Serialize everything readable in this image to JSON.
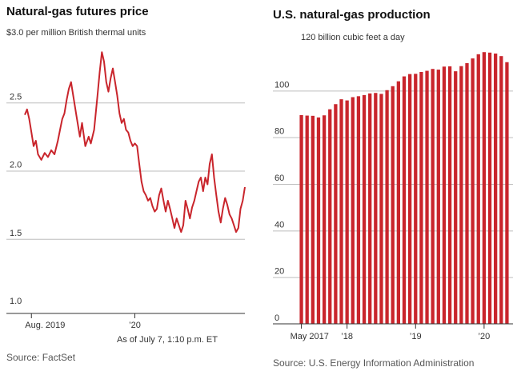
{
  "left": {
    "title": "Natural-gas futures price",
    "subtitle": "$3.0 per million British thermal units",
    "note": "As of July 7, 1:10 p.m. ET",
    "source": "Source: FactSet"
  },
  "right": {
    "title": "U.S. natural-gas production",
    "subtitle": "120 billion cubic feet a day",
    "source": "Source: U.S. Energy Information Administration"
  },
  "colors": {
    "accent": "#c9252c",
    "grid": "#bdbdbd"
  },
  "chart_data": [
    {
      "type": "line",
      "title": "Natural-gas futures price",
      "ylabel": "$ per million British thermal units",
      "ylim": [
        1.0,
        3.0
      ],
      "yticks": [
        "1.0",
        "1.5",
        "2.0",
        "2.5"
      ],
      "xticks": [
        {
          "label": "Aug. 2019",
          "t": 0.03
        },
        {
          "label": "’20",
          "t": 0.5
        }
      ],
      "series": [
        {
          "name": "Natural-gas futures price",
          "points": [
            [
              0.0,
              2.41
            ],
            [
              0.01,
              2.45
            ],
            [
              0.02,
              2.38
            ],
            [
              0.03,
              2.28
            ],
            [
              0.04,
              2.18
            ],
            [
              0.05,
              2.22
            ],
            [
              0.06,
              2.12
            ],
            [
              0.075,
              2.08
            ],
            [
              0.09,
              2.13
            ],
            [
              0.105,
              2.1
            ],
            [
              0.12,
              2.15
            ],
            [
              0.135,
              2.12
            ],
            [
              0.15,
              2.22
            ],
            [
              0.16,
              2.3
            ],
            [
              0.17,
              2.38
            ],
            [
              0.18,
              2.42
            ],
            [
              0.19,
              2.52
            ],
            [
              0.2,
              2.6
            ],
            [
              0.21,
              2.65
            ],
            [
              0.22,
              2.55
            ],
            [
              0.235,
              2.4
            ],
            [
              0.25,
              2.25
            ],
            [
              0.26,
              2.35
            ],
            [
              0.275,
              2.18
            ],
            [
              0.29,
              2.25
            ],
            [
              0.3,
              2.2
            ],
            [
              0.315,
              2.3
            ],
            [
              0.33,
              2.55
            ],
            [
              0.34,
              2.72
            ],
            [
              0.35,
              2.87
            ],
            [
              0.36,
              2.8
            ],
            [
              0.37,
              2.65
            ],
            [
              0.38,
              2.58
            ],
            [
              0.39,
              2.68
            ],
            [
              0.4,
              2.75
            ],
            [
              0.41,
              2.65
            ],
            [
              0.42,
              2.55
            ],
            [
              0.43,
              2.42
            ],
            [
              0.44,
              2.35
            ],
            [
              0.45,
              2.38
            ],
            [
              0.46,
              2.3
            ],
            [
              0.47,
              2.28
            ],
            [
              0.48,
              2.22
            ],
            [
              0.49,
              2.18
            ],
            [
              0.5,
              2.2
            ],
            [
              0.51,
              2.18
            ],
            [
              0.52,
              2.05
            ],
            [
              0.53,
              1.92
            ],
            [
              0.54,
              1.85
            ],
            [
              0.55,
              1.82
            ],
            [
              0.56,
              1.78
            ],
            [
              0.57,
              1.8
            ],
            [
              0.58,
              1.74
            ],
            [
              0.59,
              1.7
            ],
            [
              0.6,
              1.72
            ],
            [
              0.61,
              1.82
            ],
            [
              0.62,
              1.87
            ],
            [
              0.63,
              1.78
            ],
            [
              0.64,
              1.7
            ],
            [
              0.65,
              1.78
            ],
            [
              0.66,
              1.72
            ],
            [
              0.67,
              1.65
            ],
            [
              0.68,
              1.58
            ],
            [
              0.69,
              1.65
            ],
            [
              0.7,
              1.6
            ],
            [
              0.71,
              1.55
            ],
            [
              0.72,
              1.6
            ],
            [
              0.73,
              1.78
            ],
            [
              0.74,
              1.72
            ],
            [
              0.75,
              1.65
            ],
            [
              0.76,
              1.73
            ],
            [
              0.77,
              1.78
            ],
            [
              0.78,
              1.85
            ],
            [
              0.79,
              1.92
            ],
            [
              0.8,
              1.95
            ],
            [
              0.81,
              1.85
            ],
            [
              0.82,
              1.95
            ],
            [
              0.83,
              1.9
            ],
            [
              0.84,
              2.05
            ],
            [
              0.85,
              2.12
            ],
            [
              0.86,
              1.95
            ],
            [
              0.87,
              1.82
            ],
            [
              0.88,
              1.7
            ],
            [
              0.89,
              1.62
            ],
            [
              0.9,
              1.72
            ],
            [
              0.91,
              1.8
            ],
            [
              0.92,
              1.75
            ],
            [
              0.93,
              1.68
            ],
            [
              0.94,
              1.65
            ],
            [
              0.95,
              1.6
            ],
            [
              0.96,
              1.55
            ],
            [
              0.97,
              1.58
            ],
            [
              0.98,
              1.72
            ],
            [
              0.99,
              1.78
            ],
            [
              1.0,
              1.88
            ]
          ]
        }
      ]
    },
    {
      "type": "bar",
      "title": "U.S. natural-gas production",
      "ylabel": "billion cubic feet a day",
      "ylim": [
        0,
        120
      ],
      "yticks": [
        "0",
        "20",
        "40",
        "60",
        "80",
        "100"
      ],
      "xticks": [
        {
          "label": "May 2017",
          "index": 0
        },
        {
          "label": "’18",
          "index": 8
        },
        {
          "label": "’19",
          "index": 20
        },
        {
          "label": "’20",
          "index": 32
        }
      ],
      "categories": [
        "2017-05",
        "2017-06",
        "2017-07",
        "2017-08",
        "2017-09",
        "2017-10",
        "2017-11",
        "2017-12",
        "2018-01",
        "2018-02",
        "2018-03",
        "2018-04",
        "2018-05",
        "2018-06",
        "2018-07",
        "2018-08",
        "2018-09",
        "2018-10",
        "2018-11",
        "2018-12",
        "2019-01",
        "2019-02",
        "2019-03",
        "2019-04",
        "2019-05",
        "2019-06",
        "2019-07",
        "2019-08",
        "2019-09",
        "2019-10",
        "2019-11",
        "2019-12",
        "2020-01",
        "2020-02",
        "2020-03",
        "2020-04",
        "2020-05"
      ],
      "values": [
        89.5,
        89.3,
        89.2,
        88.5,
        89.4,
        92.0,
        94.2,
        96.3,
        95.8,
        97.2,
        97.6,
        98.1,
        98.8,
        99.0,
        98.6,
        100.2,
        101.9,
        104.0,
        106.1,
        107.1,
        107.2,
        108.0,
        108.5,
        109.3,
        109.0,
        110.3,
        110.4,
        108.3,
        110.5,
        111.8,
        113.8,
        115.6,
        116.5,
        116.3,
        115.9,
        114.8,
        112.2
      ]
    }
  ]
}
